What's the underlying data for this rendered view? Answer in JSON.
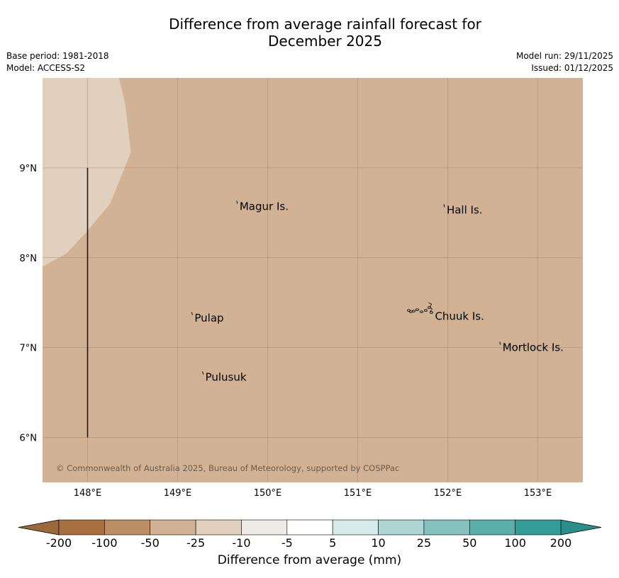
{
  "title": {
    "line1": "Difference from average rainfall forecast for",
    "line2": "December 2025"
  },
  "meta": {
    "base_period": "Base period: 1981-2018",
    "model": "Model: ACCESS-S2",
    "model_run": "Model run: 29/11/2025",
    "issued": "Issued: 01/12/2025"
  },
  "map": {
    "lon_range": [
      147.5,
      153.5
    ],
    "lat_range": [
      5.5,
      10.0
    ],
    "lon_ticks": [
      148,
      149,
      150,
      151,
      152,
      153
    ],
    "lat_ticks": [
      6,
      7,
      8,
      9
    ],
    "lon_tick_labels": [
      "148°E",
      "149°E",
      "150°E",
      "151°E",
      "152°E",
      "153°E"
    ],
    "lat_tick_labels": [
      "6°N",
      "7°N",
      "8°N",
      "9°N"
    ],
    "background_fill": "#d2b294",
    "lighter_region_fill": "#e2d0be",
    "lighter_region_category": "-25 to -10",
    "main_region_category": "-50 to -25",
    "lighter_region_boundary": [
      [
        147.5,
        7.9
      ],
      [
        147.77,
        8.05
      ],
      [
        148.0,
        8.3
      ],
      [
        148.25,
        8.6
      ],
      [
        148.48,
        9.17
      ],
      [
        148.42,
        9.7
      ],
      [
        148.35,
        10.0
      ],
      [
        147.5,
        10.0
      ]
    ],
    "meridian_line": {
      "lon": 148.0,
      "lat_from": 6.0,
      "lat_to": 9.0
    },
    "places": [
      {
        "name": "Magur Is.",
        "lon": 149.68,
        "lat": 8.57
      },
      {
        "name": "Hall Is.",
        "lon": 151.98,
        "lat": 8.53
      },
      {
        "name": "Pulap",
        "lon": 149.18,
        "lat": 7.33
      },
      {
        "name": "Chuuk Is.",
        "lon": 151.85,
        "lat": 7.35
      },
      {
        "name": "Mortlock Is.",
        "lon": 152.6,
        "lat": 7.0
      },
      {
        "name": "Pulusuk",
        "lon": 149.3,
        "lat": 6.67
      }
    ],
    "copyright": "© Commonwealth of Australia 2025, Bureau of Meteorology, supported by COSPPac"
  },
  "legend": {
    "title": "Difference from average (mm)",
    "tick_labels": [
      "-200",
      "-100",
      "-50",
      "-25",
      "-10",
      "-5",
      "5",
      "10",
      "25",
      "50",
      "100",
      "200"
    ],
    "colors": [
      "#a87040",
      "#bc8e64",
      "#d2b294",
      "#e2d0be",
      "#efebe5",
      "#ffffff",
      "#d6ebe9",
      "#acd5d3",
      "#84c1bf",
      "#5aaeab",
      "#329c98"
    ],
    "under_color": "#9a6a3a",
    "over_color": "#2a8f8b"
  }
}
